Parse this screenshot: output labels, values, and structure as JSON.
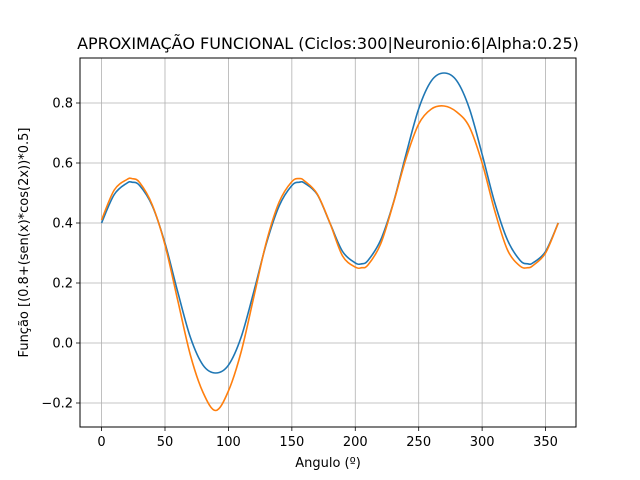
{
  "chart_data": {
    "type": "line",
    "title": "APROXIMAÇÃO FUNCIONAL (Ciclos:300|Neuronio:6|Alpha:0.25)",
    "xlabel": "Angulo (º)",
    "ylabel": "Função [(0.8+(sen(x)*cos(2x))*0.5]",
    "xlim": [
      -17,
      374
    ],
    "ylim": [
      -0.28,
      0.95
    ],
    "xticks": [
      0,
      50,
      100,
      150,
      200,
      250,
      300,
      350
    ],
    "yticks": [
      -0.2,
      0.0,
      0.2,
      0.4,
      0.6,
      0.8
    ],
    "ytick_labels": [
      "−0.2",
      "0.0",
      "0.2",
      "0.4",
      "0.6",
      "0.8"
    ],
    "grid": true,
    "x": [
      0,
      10,
      20,
      24,
      30,
      40,
      50,
      60,
      70,
      80,
      90,
      100,
      110,
      120,
      130,
      140,
      150,
      156,
      160,
      170,
      180,
      190,
      200,
      205,
      210,
      220,
      230,
      240,
      250,
      260,
      270,
      280,
      290,
      300,
      310,
      320,
      330,
      336,
      340,
      350,
      360
    ],
    "series": [
      {
        "color": "#1f77b4",
        "values": [
          0.4,
          0.495,
          0.533,
          0.536,
          0.525,
          0.457,
          0.333,
          0.171,
          0.019,
          -0.074,
          -0.1,
          -0.074,
          0.019,
          0.171,
          0.333,
          0.457,
          0.525,
          0.536,
          0.533,
          0.495,
          0.4,
          0.305,
          0.267,
          0.264,
          0.275,
          0.343,
          0.467,
          0.629,
          0.781,
          0.874,
          0.9,
          0.874,
          0.781,
          0.629,
          0.467,
          0.343,
          0.275,
          0.264,
          0.267,
          0.305,
          0.4
        ]
      },
      {
        "color": "#ff7f0e",
        "values": [
          0.41,
          0.51,
          0.545,
          0.548,
          0.535,
          0.46,
          0.327,
          0.143,
          -0.04,
          -0.165,
          -0.225,
          -0.16,
          -0.03,
          0.153,
          0.338,
          0.47,
          0.538,
          0.548,
          0.54,
          0.497,
          0.4,
          0.29,
          0.253,
          0.251,
          0.26,
          0.33,
          0.465,
          0.615,
          0.73,
          0.78,
          0.79,
          0.77,
          0.72,
          0.6,
          0.44,
          0.31,
          0.256,
          0.251,
          0.258,
          0.3,
          0.4
        ]
      }
    ]
  }
}
